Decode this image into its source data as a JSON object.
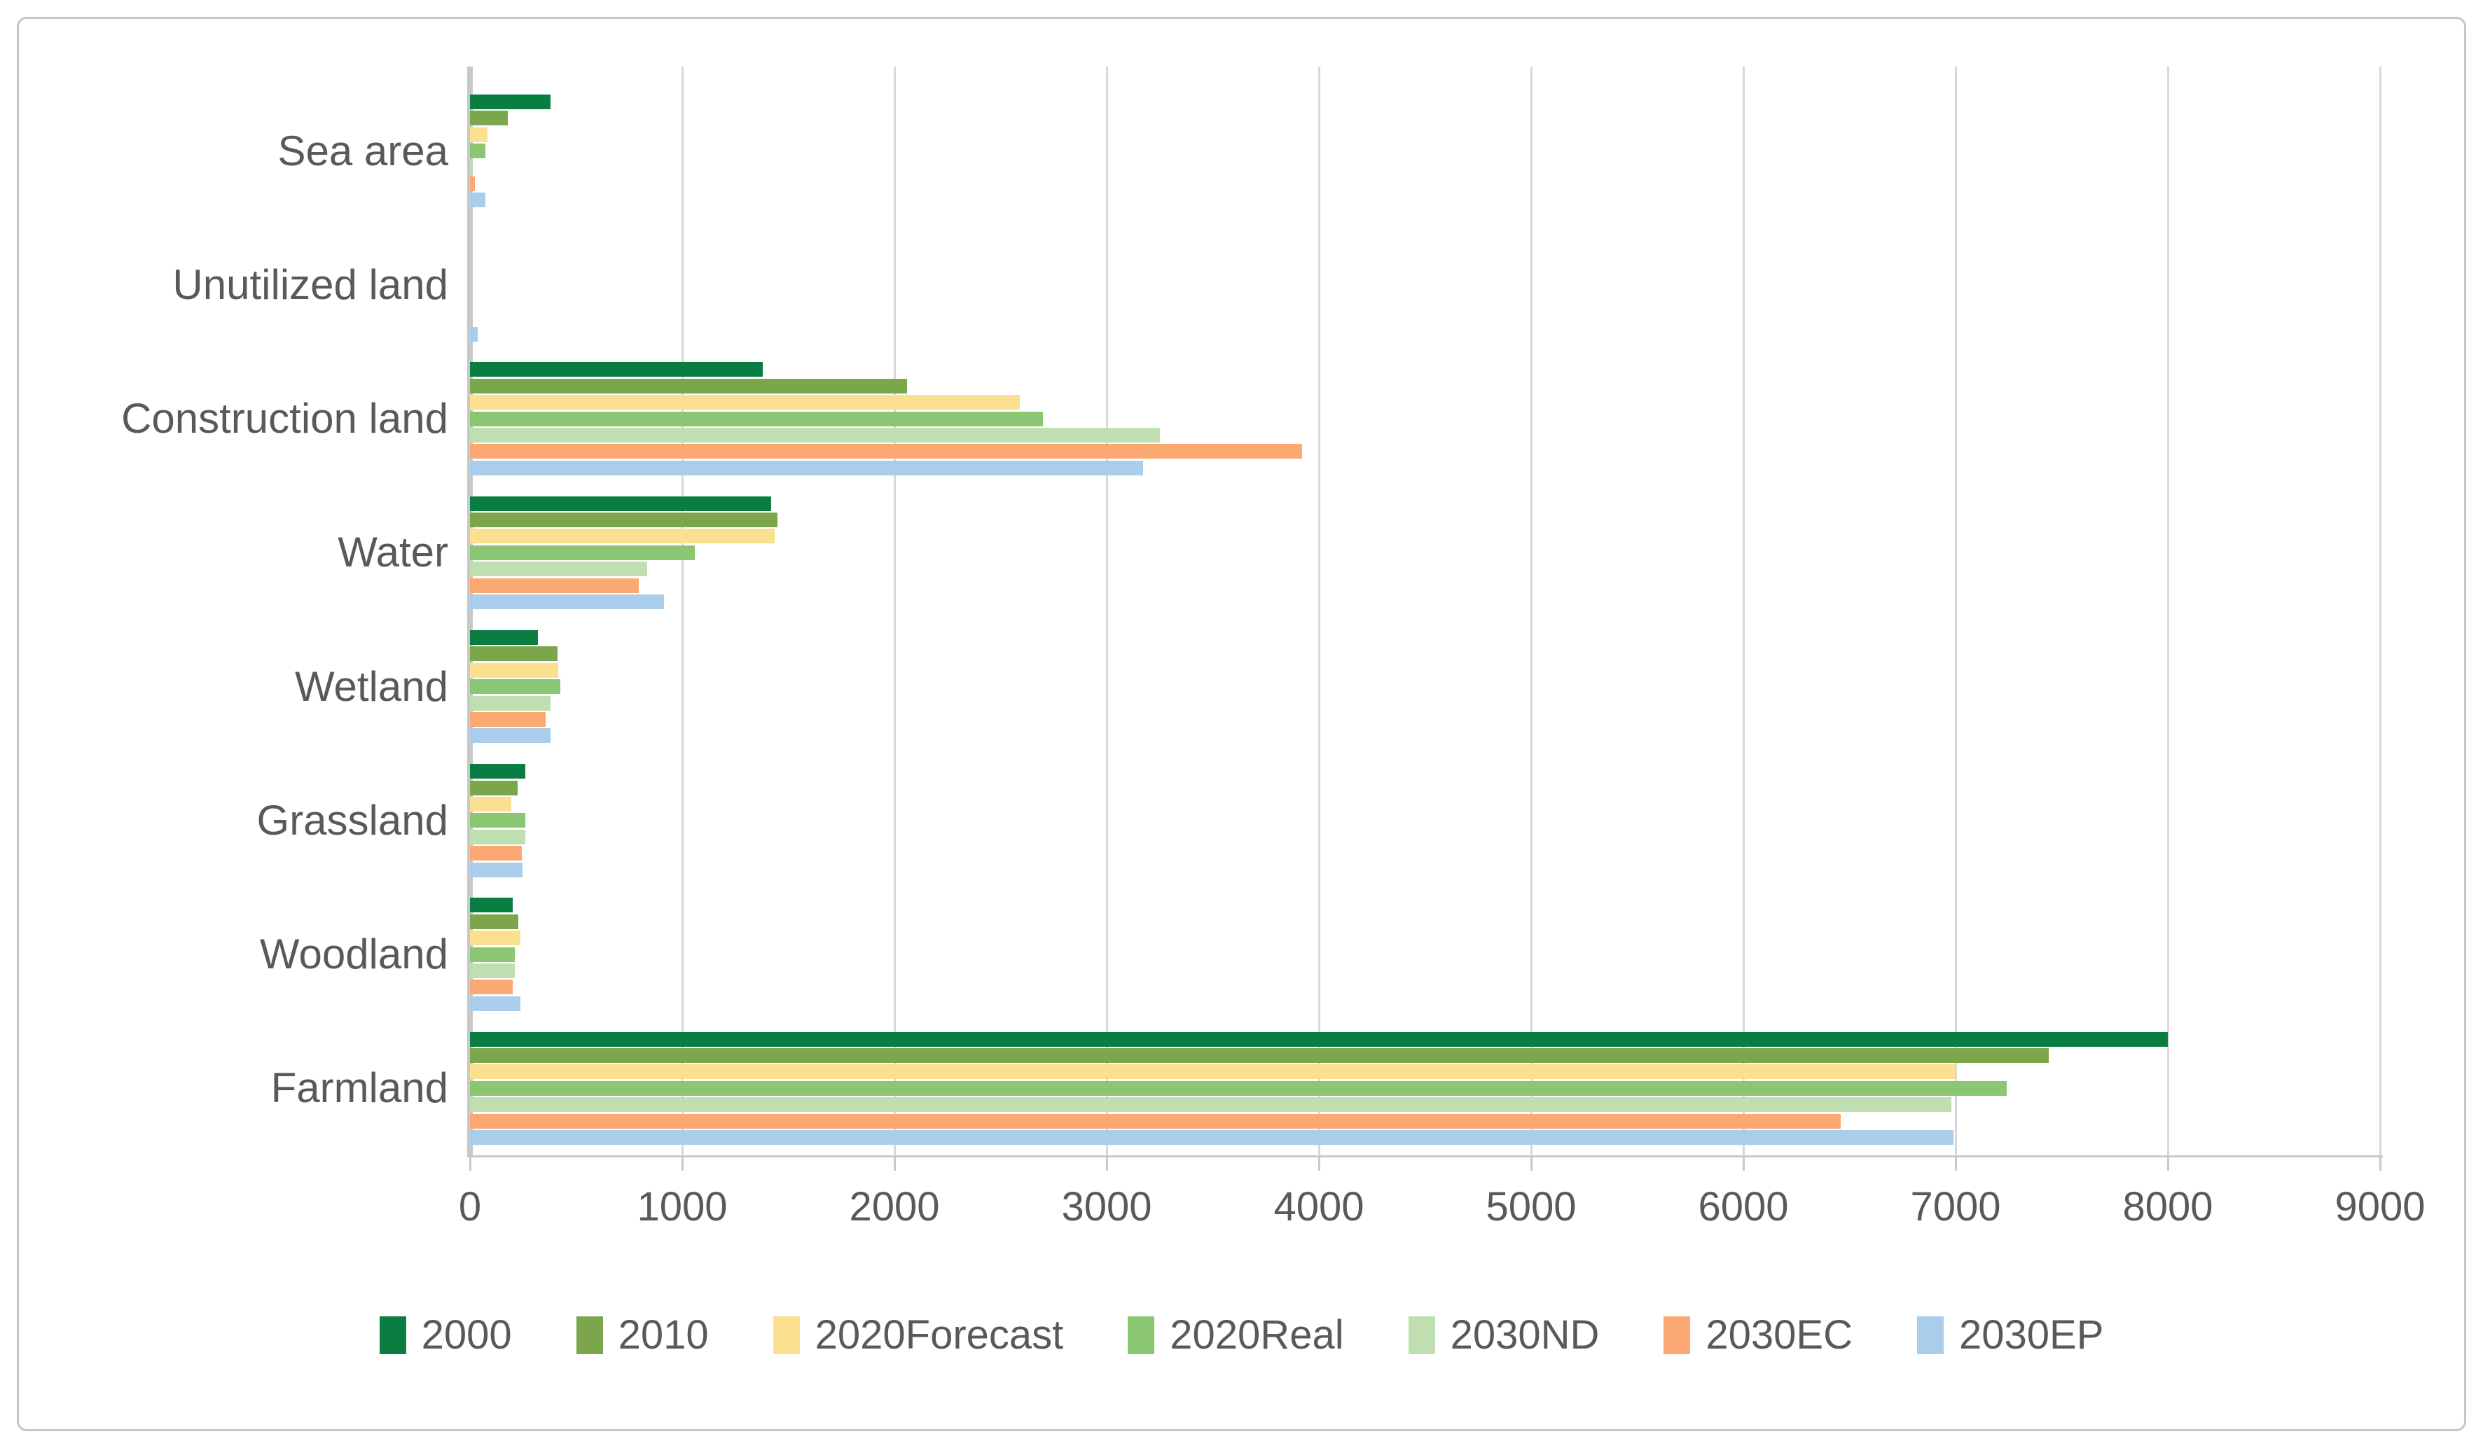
{
  "chart_data": {
    "type": "bar",
    "orientation": "horizontal",
    "title": "",
    "xlabel": "",
    "ylabel": "",
    "grid": true,
    "legend_position": "bottom",
    "xlim": [
      0,
      9000
    ],
    "xticks": [
      0,
      1000,
      2000,
      3000,
      4000,
      5000,
      6000,
      7000,
      8000,
      9000
    ],
    "categories": [
      "Sea area",
      "Unutilized land",
      "Construction land",
      "Water",
      "Wetland",
      "Grassland",
      "Woodland",
      "Farmland"
    ],
    "series": [
      {
        "name": "2000",
        "color": "#0a7d42",
        "values": [
          380,
          0,
          1380,
          1420,
          320,
          260,
          200,
          8000
        ]
      },
      {
        "name": "2010",
        "color": "#7ca64b",
        "values": [
          178,
          0,
          2060,
          1450,
          413,
          224,
          228,
          7440
        ]
      },
      {
        "name": "2020Forecast",
        "color": "#fbe08f",
        "values": [
          82,
          0,
          2590,
          1435,
          416,
          195,
          238,
          7000
        ]
      },
      {
        "name": "2020Real",
        "color": "#8bc772",
        "values": [
          72,
          0,
          2700,
          1060,
          426,
          261,
          211,
          7240
        ]
      },
      {
        "name": "2030ND",
        "color": "#bfdfb0",
        "values": [
          10,
          0,
          3250,
          835,
          380,
          261,
          211,
          6980
        ]
      },
      {
        "name": "2030EC",
        "color": "#fba873",
        "values": [
          23,
          0,
          3920,
          795,
          356,
          244,
          201,
          6460
        ]
      },
      {
        "name": "2030EP",
        "color": "#a9cdea",
        "values": [
          72,
          37,
          3170,
          915,
          380,
          248,
          238,
          6990
        ]
      }
    ],
    "colors": {
      "grid": "#d8d8d8",
      "axis": "#c9c9c9",
      "text": "#595959",
      "frame_border": "#c6c6c6",
      "background": "#ffffff"
    }
  }
}
